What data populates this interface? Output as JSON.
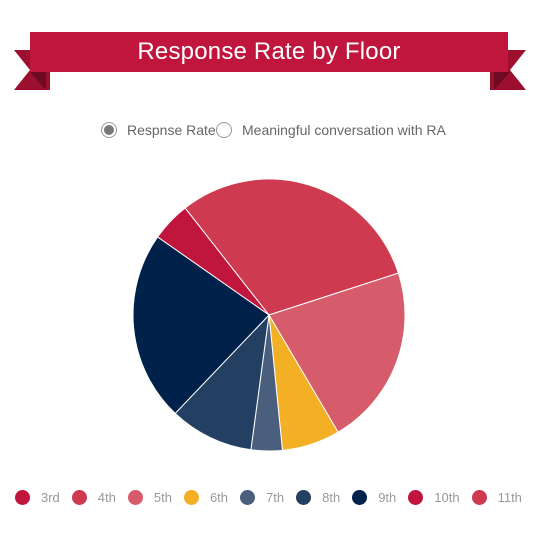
{
  "title": "Response Rate by Floor",
  "toggles": [
    {
      "label": "Respnse Rate",
      "selected": true
    },
    {
      "label": "Meaningful conversation with RA",
      "selected": false
    }
  ],
  "colors": {
    "ribbon": "#c0153c",
    "ribbon_dark": "#9c0f2f",
    "3rd": "#c0153c",
    "4th": "#ce3a50",
    "5th": "#d75c6b",
    "6th": "#f3b024",
    "7th": "#4a5f7e",
    "8th": "#233f62",
    "9th": "#00214a",
    "10th": "#c0153c",
    "11th": "#ce3a50"
  },
  "chart_data": {
    "type": "pie",
    "title": "Response Rate by Floor",
    "slices": [
      {
        "label": "3rd",
        "value": 4.7,
        "color": "#c0153c"
      },
      {
        "label": "4th",
        "value": 30.6,
        "color": "#ce3a50"
      },
      {
        "label": "5th",
        "value": 21.5,
        "color": "#d75c6b"
      },
      {
        "label": "6th",
        "value": 6.9,
        "color": "#f3b024"
      },
      {
        "label": "7th",
        "value": 3.7,
        "color": "#4a5f7e"
      },
      {
        "label": "8th",
        "value": 10.0,
        "color": "#233f62"
      },
      {
        "label": "9th",
        "value": 22.6,
        "color": "#00214a"
      },
      {
        "label": "10th",
        "value": 0,
        "color": "#c0153c"
      },
      {
        "label": "11th",
        "value": 0,
        "color": "#ce3a50"
      }
    ],
    "legend": [
      "3rd",
      "4th",
      "5th",
      "6th",
      "7th",
      "8th",
      "9th",
      "10th",
      "11th"
    ],
    "legend_position": "bottom"
  }
}
